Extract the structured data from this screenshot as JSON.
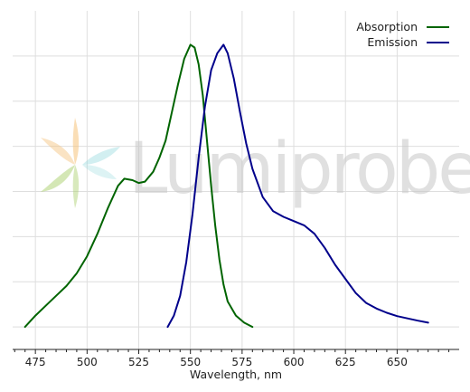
{
  "chart_data": {
    "type": "line",
    "title": "",
    "xlabel": "Wavelength, nm",
    "ylabel": "",
    "xlim": [
      464,
      680
    ],
    "ylim": [
      -0.08,
      1.12
    ],
    "x_ticks": [
      475,
      500,
      525,
      550,
      575,
      600,
      625,
      650
    ],
    "y_grid": [
      0.0,
      0.16,
      0.32,
      0.48,
      0.64,
      0.8,
      0.96
    ],
    "grid": true,
    "legend": "top-right",
    "watermark": "Lumiprobe",
    "series": [
      {
        "name": "Absorption",
        "color": "#006400",
        "points": [
          [
            470,
            0.0
          ],
          [
            475,
            0.04
          ],
          [
            480,
            0.075
          ],
          [
            485,
            0.11
          ],
          [
            490,
            0.145
          ],
          [
            495,
            0.19
          ],
          [
            500,
            0.25
          ],
          [
            505,
            0.33
          ],
          [
            510,
            0.42
          ],
          [
            515,
            0.5
          ],
          [
            518,
            0.525
          ],
          [
            522,
            0.52
          ],
          [
            525,
            0.51
          ],
          [
            528,
            0.515
          ],
          [
            532,
            0.55
          ],
          [
            535,
            0.6
          ],
          [
            538,
            0.66
          ],
          [
            541,
            0.76
          ],
          [
            544,
            0.86
          ],
          [
            547,
            0.95
          ],
          [
            550,
            1.0
          ],
          [
            552,
            0.99
          ],
          [
            554,
            0.93
          ],
          [
            556,
            0.82
          ],
          [
            558,
            0.66
          ],
          [
            560,
            0.5
          ],
          [
            562,
            0.36
          ],
          [
            564,
            0.24
          ],
          [
            566,
            0.15
          ],
          [
            568,
            0.09
          ],
          [
            572,
            0.04
          ],
          [
            576,
            0.015
          ],
          [
            580,
            0.0
          ]
        ]
      },
      {
        "name": "Emission",
        "color": "#00008B",
        "points": [
          [
            539,
            0.0
          ],
          [
            542,
            0.04
          ],
          [
            545,
            0.11
          ],
          [
            548,
            0.23
          ],
          [
            551,
            0.4
          ],
          [
            554,
            0.6
          ],
          [
            557,
            0.78
          ],
          [
            560,
            0.91
          ],
          [
            563,
            0.97
          ],
          [
            566,
            1.0
          ],
          [
            568,
            0.97
          ],
          [
            571,
            0.88
          ],
          [
            574,
            0.76
          ],
          [
            577,
            0.65
          ],
          [
            580,
            0.56
          ],
          [
            585,
            0.46
          ],
          [
            590,
            0.41
          ],
          [
            595,
            0.39
          ],
          [
            600,
            0.375
          ],
          [
            605,
            0.36
          ],
          [
            610,
            0.33
          ],
          [
            615,
            0.28
          ],
          [
            620,
            0.22
          ],
          [
            625,
            0.17
          ],
          [
            630,
            0.12
          ],
          [
            635,
            0.085
          ],
          [
            640,
            0.065
          ],
          [
            645,
            0.05
          ],
          [
            650,
            0.038
          ],
          [
            655,
            0.03
          ],
          [
            660,
            0.022
          ],
          [
            665,
            0.015
          ]
        ]
      }
    ]
  }
}
